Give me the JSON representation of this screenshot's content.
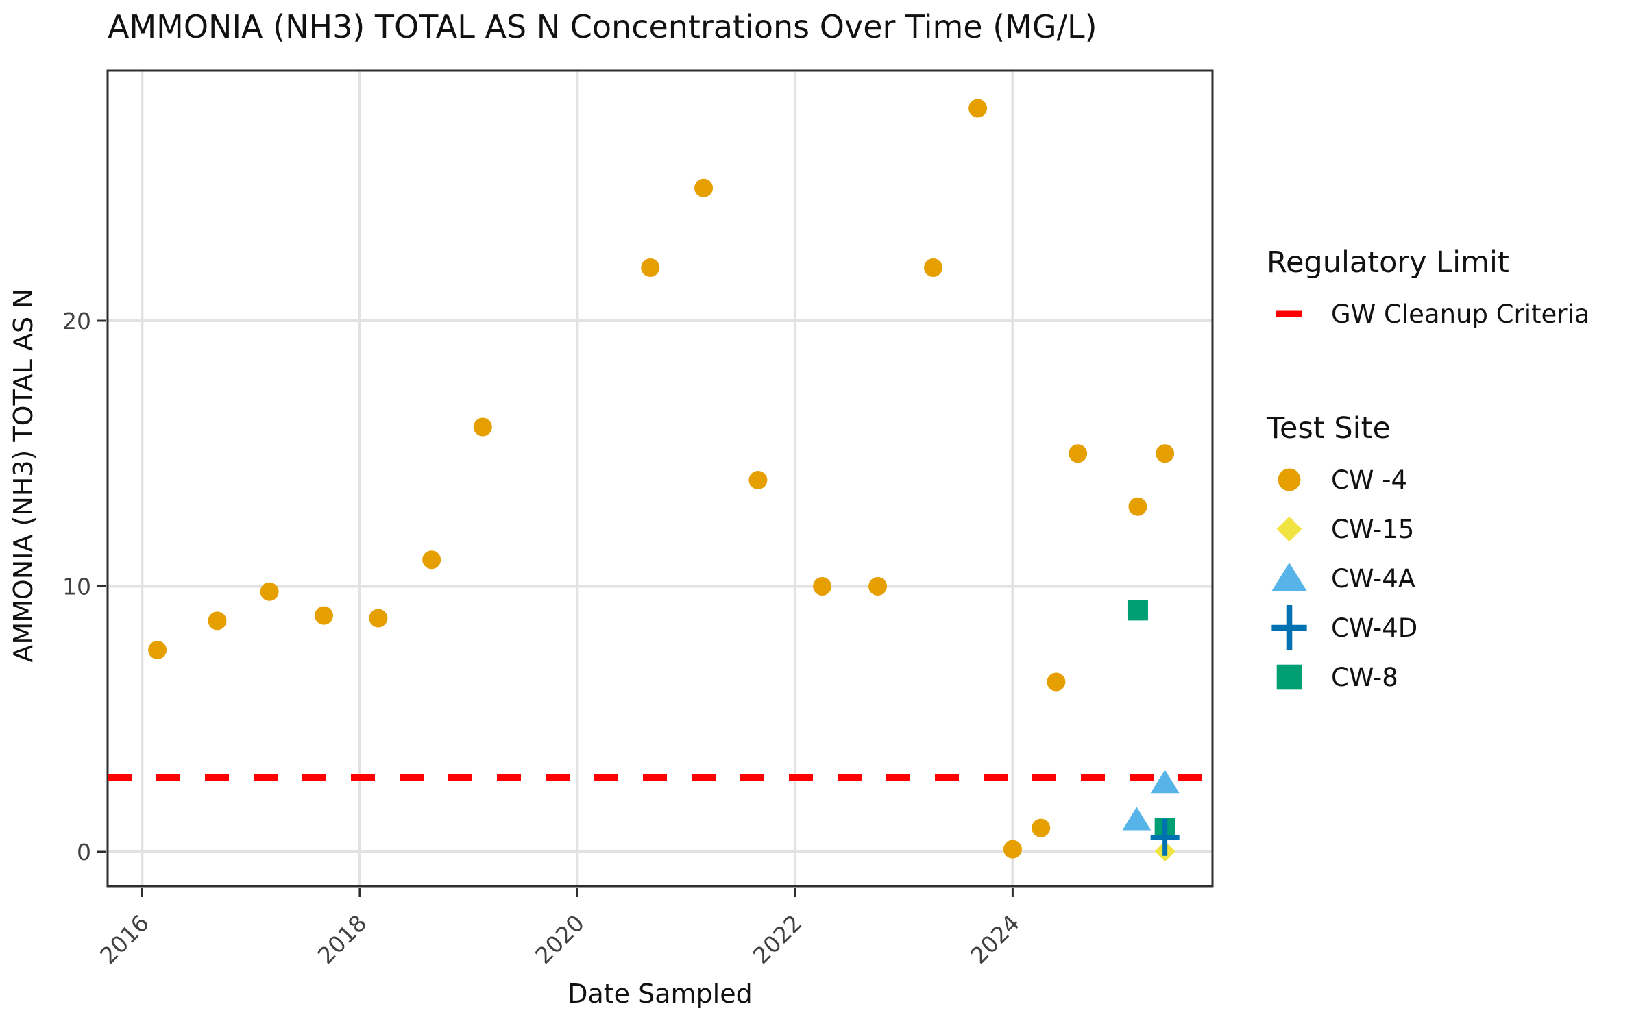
{
  "chart_data": {
    "type": "scatter",
    "title": "AMMONIA (NH3) TOTAL AS N Concentrations Over Time (MG/L)",
    "xlabel": "Date Sampled",
    "ylabel": "AMMONIA (NH3) TOTAL AS N",
    "x_ticks": [
      2016,
      2018,
      2020,
      2022,
      2024
    ],
    "y_ticks": [
      0,
      10,
      20
    ],
    "xlim": [
      2015.68,
      2025.84
    ],
    "ylim": [
      -1.3,
      29.2
    ],
    "grid": true,
    "legend_position": "right",
    "reference_line": {
      "label": "GW Cleanup Criteria",
      "value": 2.8,
      "color": "#FF0000",
      "style": "dashed"
    },
    "series": [
      {
        "name": "CW -4",
        "marker": "circle",
        "color": "#E69F00",
        "points": [
          [
            2016.14,
            7.6
          ],
          [
            2016.69,
            8.7
          ],
          [
            2017.17,
            9.8
          ],
          [
            2017.67,
            8.9
          ],
          [
            2018.17,
            8.8
          ],
          [
            2018.66,
            11.0
          ],
          [
            2019.13,
            16.0
          ],
          [
            2020.67,
            22.0
          ],
          [
            2021.16,
            25.0
          ],
          [
            2021.66,
            14.0
          ],
          [
            2022.25,
            10.0
          ],
          [
            2022.76,
            10.0
          ],
          [
            2023.27,
            22.0
          ],
          [
            2023.68,
            28.0
          ],
          [
            2024.0,
            0.1
          ],
          [
            2024.26,
            0.9
          ],
          [
            2024.4,
            6.4
          ],
          [
            2024.6,
            15.0
          ],
          [
            2025.15,
            13.0
          ],
          [
            2025.4,
            15.0
          ]
        ]
      },
      {
        "name": "CW-15",
        "marker": "diamond",
        "color": "#F0E442",
        "points": [
          [
            2025.4,
            0.02
          ]
        ]
      },
      {
        "name": "CW-4A",
        "marker": "triangle",
        "color": "#56B4E9",
        "points": [
          [
            2025.14,
            1.2
          ],
          [
            2025.4,
            2.6
          ]
        ]
      },
      {
        "name": "CW-4D",
        "marker": "plus",
        "color": "#0072B2",
        "points": [
          [
            2025.4,
            0.55
          ]
        ]
      },
      {
        "name": "CW-8",
        "marker": "square",
        "color": "#009E73",
        "points": [
          [
            2025.15,
            9.1
          ],
          [
            2025.4,
            0.9
          ]
        ]
      }
    ]
  },
  "legend": {
    "regulatory_title": "Regulatory Limit",
    "site_title": "Test Site"
  },
  "style": {
    "grid_color": "#E2E2E2",
    "border_color": "#2E2E2E",
    "tick_color": "#2E2E2E",
    "tick_label_color": "#404040"
  }
}
